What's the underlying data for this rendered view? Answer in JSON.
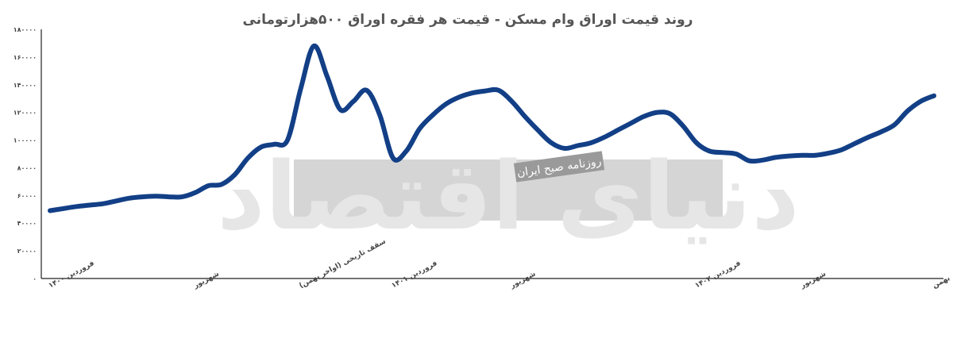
{
  "colors": {
    "line": "#123f86",
    "axis": "#222222",
    "watermark_band": "#d5d5d5",
    "title": "#555555"
  },
  "watermark": {
    "main": "دنیای اقتصاد",
    "sub": "روزنامه صبح ایران"
  },
  "chart_data": {
    "type": "line",
    "title": "روند قیمت اوراق وام مسکن - قیمت هر فقره اوراق ۵۰۰هزارتومانی",
    "xlabel": "",
    "ylabel": "",
    "ylim": [
      0,
      180000
    ],
    "grid": false,
    "legend": "none",
    "y_ticks": [
      0,
      20000,
      40000,
      60000,
      80000,
      100000,
      120000,
      140000,
      160000,
      180000
    ],
    "y_tick_labels": [
      "۰",
      "۲۰۰۰۰",
      "۴۰۰۰۰",
      "۶۰۰۰۰",
      "۸۰۰۰۰",
      "۱۰۰۰۰۰",
      "۱۲۰۰۰۰",
      "۱۴۰۰۰۰",
      "۱۶۰۰۰۰",
      "۱۸۰۰۰۰"
    ],
    "x_ticks": [
      {
        "index": 0,
        "label": "فروردین ۱۴۰۰"
      },
      {
        "index": 11,
        "label": "شهریور"
      },
      {
        "index": 19,
        "label": "سقف تاریخی (اواخر بهمن)"
      },
      {
        "index": 26,
        "label": "فروردین ۱۴۰۱"
      },
      {
        "index": 35,
        "label": "شهریور"
      },
      {
        "index": 49,
        "label": "فروردین ۱۴۰۲"
      },
      {
        "index": 57,
        "label": "شهریور"
      },
      {
        "index": 67,
        "label": "بهمن"
      }
    ],
    "series": [
      {
        "values": [
          49000,
          50500,
          52000,
          53000,
          54000,
          56000,
          58000,
          59000,
          59500,
          59000,
          59000,
          62000,
          67000,
          68000,
          75000,
          87000,
          95000,
          97000,
          100000,
          137000,
          168000,
          146000,
          122000,
          128000,
          136000,
          118000,
          87000,
          92000,
          108000,
          118000,
          126000,
          131000,
          134000,
          135500,
          136000,
          128000,
          117000,
          107000,
          98000,
          94000,
          96000,
          98000,
          102000,
          107000,
          112000,
          117000,
          120000,
          119000,
          110000,
          98000,
          92000,
          91000,
          90000,
          85000,
          85500,
          87500,
          88500,
          89000,
          89000,
          90500,
          93000,
          97500,
          102000,
          106000,
          111000,
          121000,
          128000,
          132000
        ]
      }
    ]
  }
}
